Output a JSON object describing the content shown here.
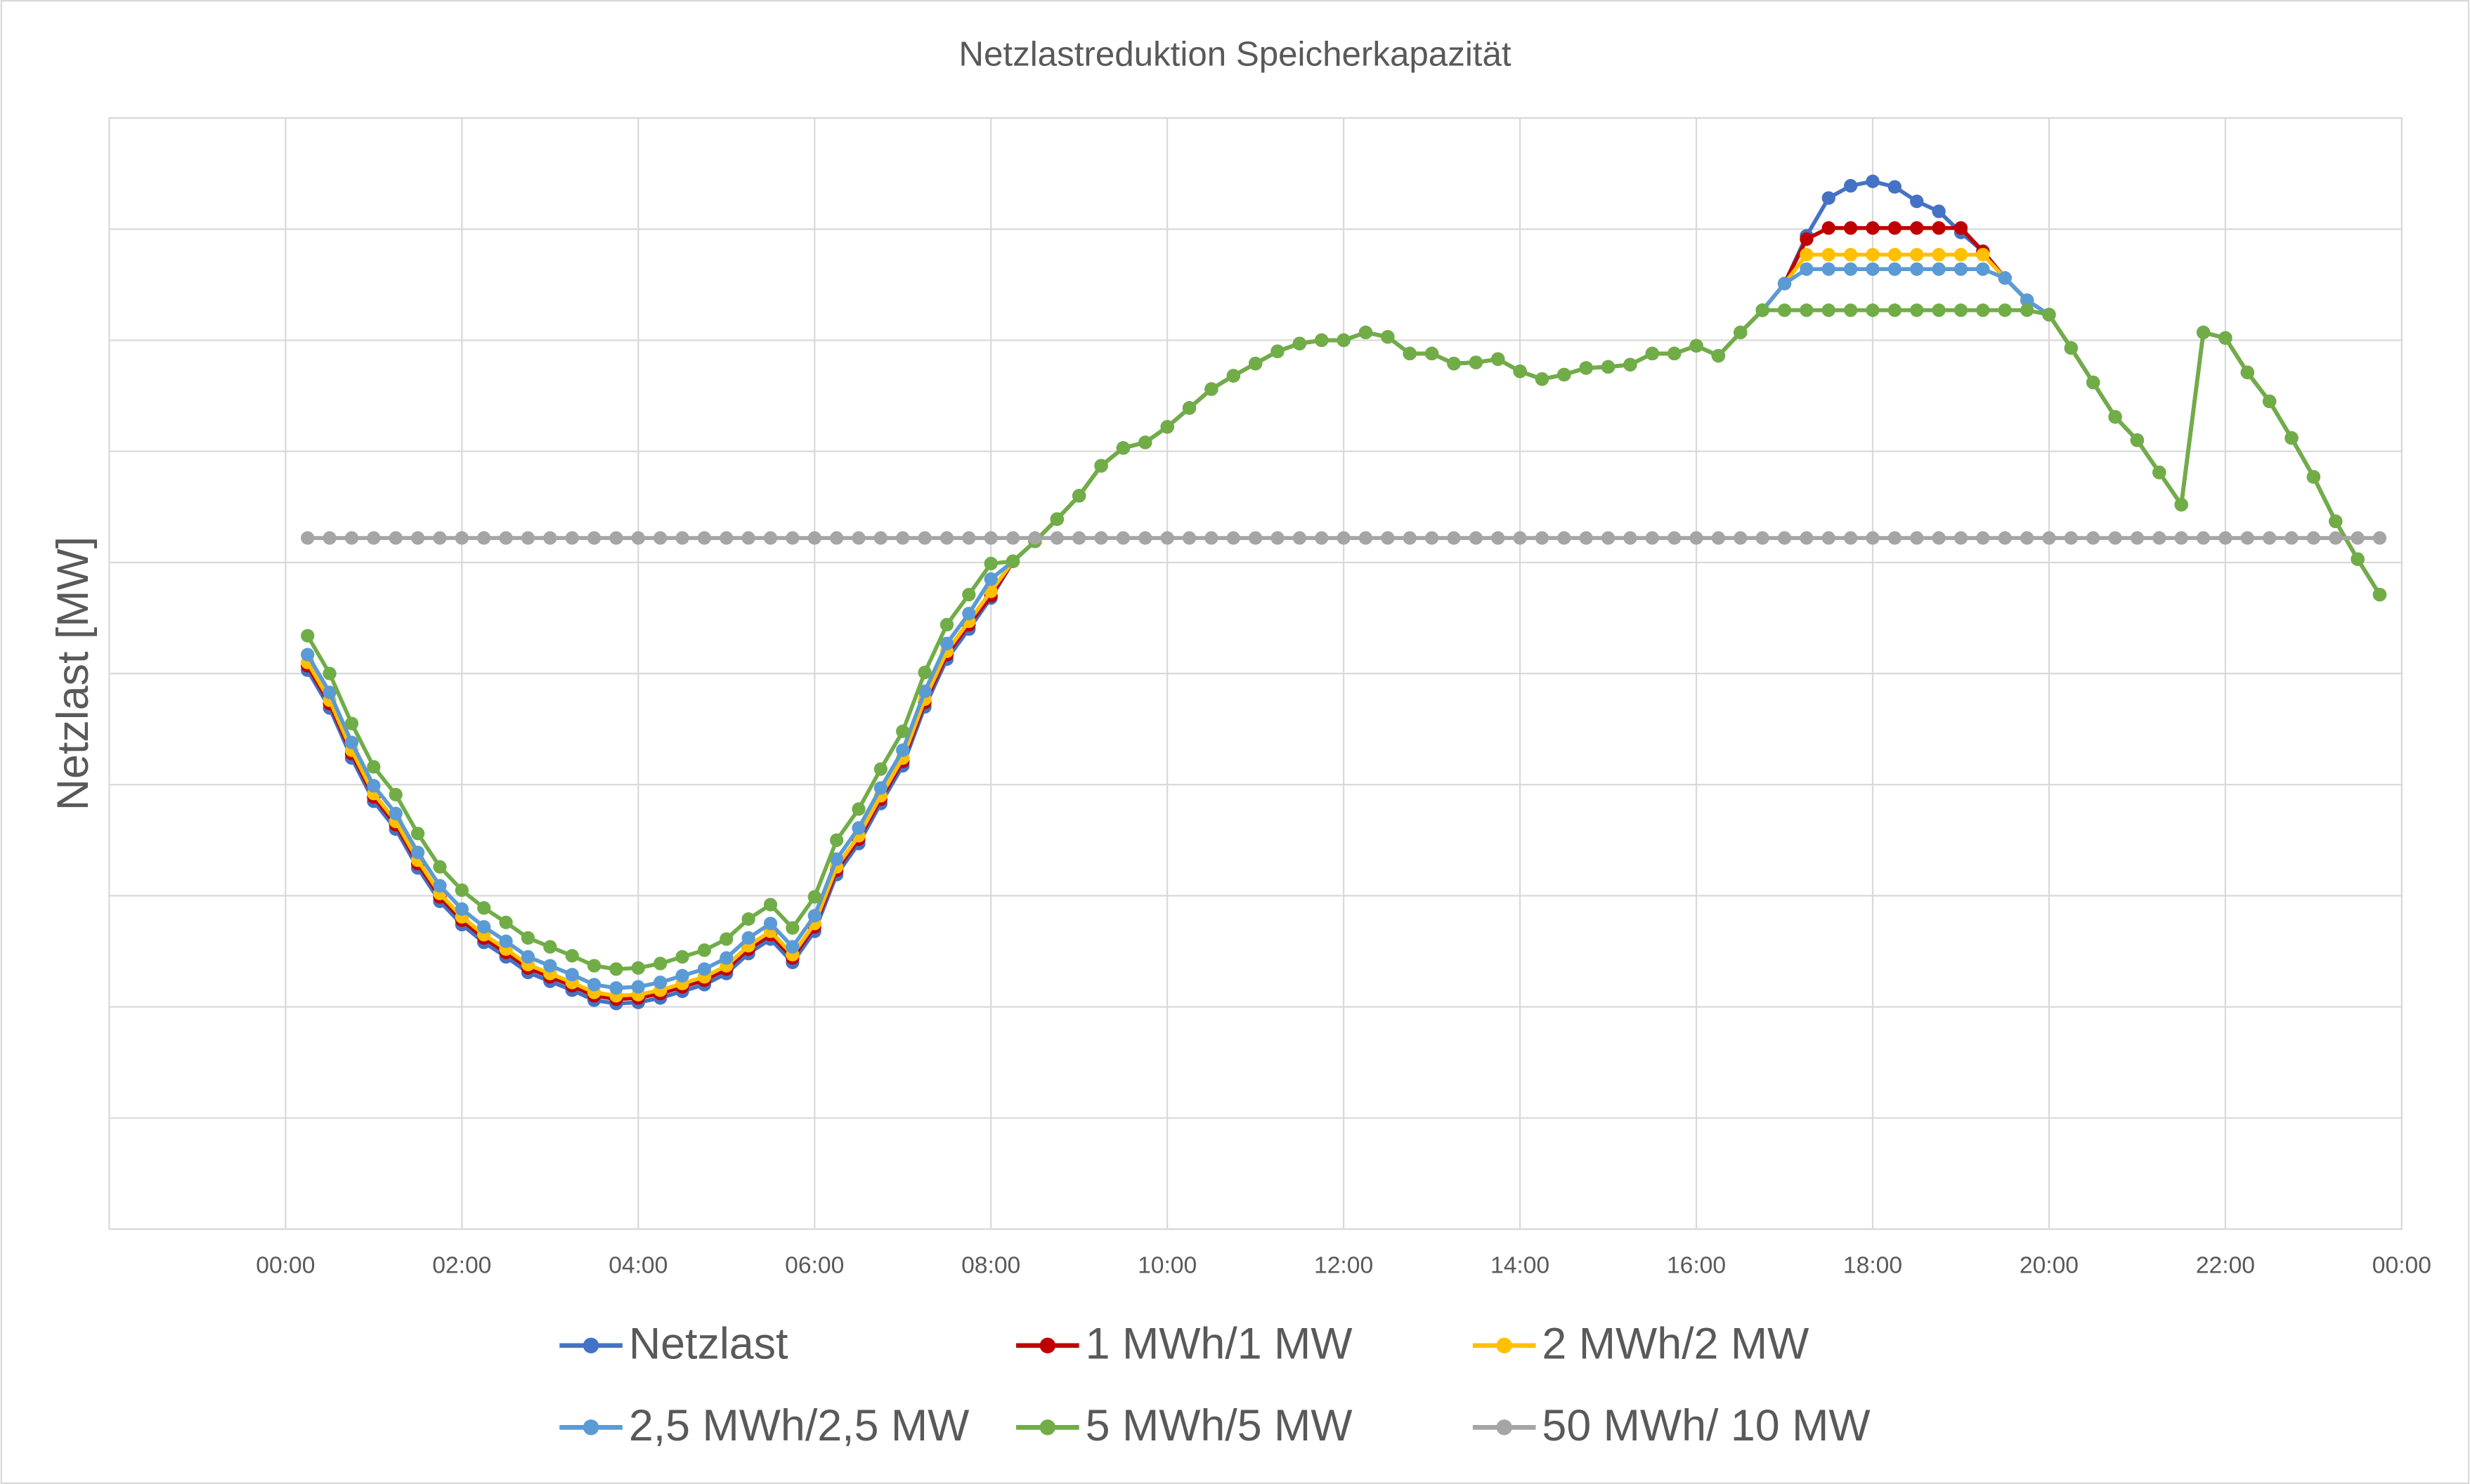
{
  "chart_data": {
    "type": "line",
    "title": "Netzlastreduktion Speicherkapazität",
    "y_label": "Netzlast [MW]",
    "x": [
      0.25,
      0.5,
      0.75,
      1,
      1.25,
      1.5,
      1.75,
      2,
      2.25,
      2.5,
      2.75,
      3,
      3.25,
      3.5,
      3.75,
      4,
      4.25,
      4.5,
      4.75,
      5,
      5.25,
      5.5,
      5.75,
      6,
      6.25,
      6.5,
      6.75,
      7,
      7.25,
      7.5,
      7.75,
      8,
      8.25,
      8.5,
      8.75,
      9,
      9.25,
      9.5,
      9.75,
      10,
      10.25,
      10.5,
      10.75,
      11,
      11.25,
      11.5,
      11.75,
      12,
      12.25,
      12.5,
      12.75,
      13,
      13.25,
      13.5,
      13.75,
      14,
      14.25,
      14.5,
      14.75,
      15,
      15.25,
      15.5,
      15.75,
      16,
      16.25,
      16.5,
      16.75,
      17,
      17.25,
      17.5,
      17.75,
      18,
      18.25,
      18.5,
      18.75,
      19,
      19.25,
      19.5,
      19.75,
      20,
      20.25,
      20.5,
      20.75,
      21,
      21.25,
      21.5,
      21.75,
      22,
      22.25,
      22.5,
      22.75,
      23,
      23.25,
      23.5,
      23.75
    ],
    "xlim": [
      -2,
      24
    ],
    "xticks": [
      {
        "value": 0,
        "label": "00:00"
      },
      {
        "value": 2,
        "label": "02:00"
      },
      {
        "value": 4,
        "label": "04:00"
      },
      {
        "value": 6,
        "label": "06:00"
      },
      {
        "value": 8,
        "label": "08:00"
      },
      {
        "value": 10,
        "label": "10:00"
      },
      {
        "value": 12,
        "label": "12:00"
      },
      {
        "value": 14,
        "label": "14:00"
      },
      {
        "value": 16,
        "label": "16:00"
      },
      {
        "value": 18,
        "label": "18:00"
      },
      {
        "value": 20,
        "label": "20:00"
      },
      {
        "value": 22,
        "label": "22:00"
      },
      {
        "value": 24,
        "label": "00:00"
      }
    ],
    "ylim": [
      0,
      10
    ],
    "yticks": [
      0,
      1,
      2,
      3,
      4,
      5,
      6,
      7,
      8,
      9,
      10
    ],
    "ytick_labels": false,
    "grid": true,
    "markers": true,
    "legend": "bottom",
    "series": [
      {
        "name": "Netzlast",
        "color": "#4472c4",
        "values": [
          5.03,
          4.69,
          4.24,
          3.85,
          3.6,
          3.25,
          2.95,
          2.74,
          2.58,
          2.45,
          2.31,
          2.23,
          2.15,
          2.06,
          2.03,
          2.04,
          2.08,
          2.14,
          2.2,
          2.3,
          2.48,
          2.61,
          2.4,
          2.68,
          3.19,
          3.47,
          3.83,
          4.17,
          4.7,
          5.13,
          5.4,
          5.68,
          6.01,
          6.19,
          6.39,
          6.6,
          6.87,
          7.03,
          7.08,
          7.22,
          7.39,
          7.56,
          7.68,
          7.79,
          7.9,
          7.97,
          8.0,
          8.0,
          8.07,
          8.03,
          7.88,
          7.88,
          7.79,
          7.8,
          7.83,
          7.72,
          7.65,
          7.69,
          7.75,
          7.76,
          7.78,
          7.88,
          7.88,
          7.95,
          7.86,
          8.07,
          8.27,
          8.51,
          8.94,
          9.28,
          9.39,
          9.43,
          9.38,
          9.25,
          9.16,
          8.97,
          8.8,
          8.56,
          8.36,
          8.23,
          7.93,
          7.62,
          7.31,
          7.1,
          6.81,
          6.52,
          8.07,
          8.02,
          7.71,
          7.45,
          7.12,
          6.77,
          6.37,
          6.03,
          5.71
        ]
      },
      {
        "name": "1 MWh/1 MW",
        "color": "#c00000",
        "values": [
          5.07,
          4.73,
          4.28,
          3.89,
          3.64,
          3.29,
          2.99,
          2.78,
          2.62,
          2.49,
          2.35,
          2.27,
          2.19,
          2.1,
          2.07,
          2.08,
          2.12,
          2.18,
          2.24,
          2.34,
          2.52,
          2.65,
          2.44,
          2.72,
          3.23,
          3.51,
          3.87,
          4.21,
          4.74,
          5.17,
          5.44,
          5.7,
          6.01,
          6.19,
          6.39,
          6.6,
          6.87,
          7.03,
          7.08,
          7.22,
          7.39,
          7.56,
          7.68,
          7.79,
          7.9,
          7.97,
          8.0,
          8.0,
          8.07,
          8.03,
          7.88,
          7.88,
          7.79,
          7.8,
          7.83,
          7.72,
          7.65,
          7.69,
          7.75,
          7.76,
          7.78,
          7.88,
          7.88,
          7.95,
          7.86,
          8.07,
          8.27,
          8.51,
          8.91,
          9.01,
          9.01,
          9.01,
          9.01,
          9.01,
          9.01,
          9.01,
          8.8,
          8.56,
          8.36,
          8.23,
          7.93,
          7.62,
          7.31,
          7.1,
          6.81,
          6.52,
          8.07,
          8.02,
          7.71,
          7.45,
          7.12,
          6.77,
          6.37,
          6.03,
          5.71
        ]
      },
      {
        "name": "2 MWh/2 MW",
        "color": "#ffc000",
        "values": [
          5.1,
          4.76,
          4.31,
          3.92,
          3.67,
          3.32,
          3.02,
          2.81,
          2.65,
          2.52,
          2.38,
          2.3,
          2.22,
          2.13,
          2.1,
          2.11,
          2.15,
          2.21,
          2.27,
          2.37,
          2.55,
          2.68,
          2.47,
          2.75,
          3.26,
          3.54,
          3.9,
          4.24,
          4.77,
          5.2,
          5.47,
          5.74,
          6.01,
          6.19,
          6.39,
          6.6,
          6.87,
          7.03,
          7.08,
          7.22,
          7.39,
          7.56,
          7.68,
          7.79,
          7.9,
          7.97,
          8.0,
          8.0,
          8.07,
          8.03,
          7.88,
          7.88,
          7.79,
          7.8,
          7.83,
          7.72,
          7.65,
          7.69,
          7.75,
          7.76,
          7.78,
          7.88,
          7.88,
          7.95,
          7.86,
          8.07,
          8.27,
          8.51,
          8.77,
          8.77,
          8.77,
          8.77,
          8.77,
          8.77,
          8.77,
          8.77,
          8.77,
          8.56,
          8.36,
          8.23,
          7.93,
          7.62,
          7.31,
          7.1,
          6.81,
          6.52,
          8.07,
          8.02,
          7.71,
          7.45,
          7.12,
          6.77,
          6.37,
          6.03,
          5.71
        ]
      },
      {
        "name": "2,5 MWh/2,5 MW",
        "color": "#5b9bd5",
        "values": [
          5.17,
          4.83,
          4.38,
          3.99,
          3.74,
          3.39,
          3.09,
          2.88,
          2.72,
          2.59,
          2.45,
          2.37,
          2.29,
          2.2,
          2.17,
          2.18,
          2.22,
          2.28,
          2.34,
          2.44,
          2.62,
          2.75,
          2.54,
          2.82,
          3.33,
          3.61,
          3.97,
          4.31,
          4.84,
          5.27,
          5.54,
          5.85,
          6.01,
          6.19,
          6.39,
          6.6,
          6.87,
          7.03,
          7.08,
          7.22,
          7.39,
          7.56,
          7.68,
          7.79,
          7.9,
          7.97,
          8.0,
          8.0,
          8.07,
          8.03,
          7.88,
          7.88,
          7.79,
          7.8,
          7.83,
          7.72,
          7.65,
          7.69,
          7.75,
          7.76,
          7.78,
          7.88,
          7.88,
          7.95,
          7.86,
          8.07,
          8.27,
          8.51,
          8.64,
          8.64,
          8.64,
          8.64,
          8.64,
          8.64,
          8.64,
          8.64,
          8.64,
          8.56,
          8.36,
          8.23,
          7.93,
          7.62,
          7.31,
          7.1,
          6.81,
          6.52,
          8.07,
          8.02,
          7.71,
          7.45,
          7.12,
          6.77,
          6.37,
          6.03,
          5.71
        ]
      },
      {
        "name": "5 MWh/5 MW",
        "color": "#70ad47",
        "values": [
          5.34,
          5.0,
          4.55,
          4.16,
          3.91,
          3.56,
          3.26,
          3.05,
          2.89,
          2.76,
          2.62,
          2.54,
          2.46,
          2.37,
          2.34,
          2.35,
          2.39,
          2.45,
          2.51,
          2.61,
          2.79,
          2.92,
          2.71,
          2.99,
          3.5,
          3.78,
          4.14,
          4.48,
          5.01,
          5.44,
          5.71,
          5.99,
          6.01,
          6.19,
          6.39,
          6.6,
          6.87,
          7.03,
          7.08,
          7.22,
          7.39,
          7.56,
          7.68,
          7.79,
          7.9,
          7.97,
          8.0,
          8.0,
          8.07,
          8.03,
          7.88,
          7.88,
          7.79,
          7.8,
          7.83,
          7.72,
          7.65,
          7.69,
          7.75,
          7.76,
          7.78,
          7.88,
          7.88,
          7.95,
          7.86,
          8.07,
          8.27,
          8.27,
          8.27,
          8.27,
          8.27,
          8.27,
          8.27,
          8.27,
          8.27,
          8.27,
          8.27,
          8.27,
          8.27,
          8.23,
          7.93,
          7.62,
          7.31,
          7.1,
          6.81,
          6.52,
          8.07,
          8.02,
          7.71,
          7.45,
          7.12,
          6.77,
          6.37,
          6.03,
          5.71
        ]
      },
      {
        "name": "50 MWh/ 10 MW",
        "color": "#a5a5a5",
        "values": [
          6.22,
          6.22,
          6.22,
          6.22,
          6.22,
          6.22,
          6.22,
          6.22,
          6.22,
          6.22,
          6.22,
          6.22,
          6.22,
          6.22,
          6.22,
          6.22,
          6.22,
          6.22,
          6.22,
          6.22,
          6.22,
          6.22,
          6.22,
          6.22,
          6.22,
          6.22,
          6.22,
          6.22,
          6.22,
          6.22,
          6.22,
          6.22,
          6.22,
          6.22,
          6.22,
          6.22,
          6.22,
          6.22,
          6.22,
          6.22,
          6.22,
          6.22,
          6.22,
          6.22,
          6.22,
          6.22,
          6.22,
          6.22,
          6.22,
          6.22,
          6.22,
          6.22,
          6.22,
          6.22,
          6.22,
          6.22,
          6.22,
          6.22,
          6.22,
          6.22,
          6.22,
          6.22,
          6.22,
          6.22,
          6.22,
          6.22,
          6.22,
          6.22,
          6.22,
          6.22,
          6.22,
          6.22,
          6.22,
          6.22,
          6.22,
          6.22,
          6.22,
          6.22,
          6.22,
          6.22,
          6.22,
          6.22,
          6.22,
          6.22,
          6.22,
          6.22,
          6.22,
          6.22,
          6.22,
          6.22,
          6.22,
          6.22,
          6.22,
          6.22,
          6.22
        ]
      }
    ]
  }
}
